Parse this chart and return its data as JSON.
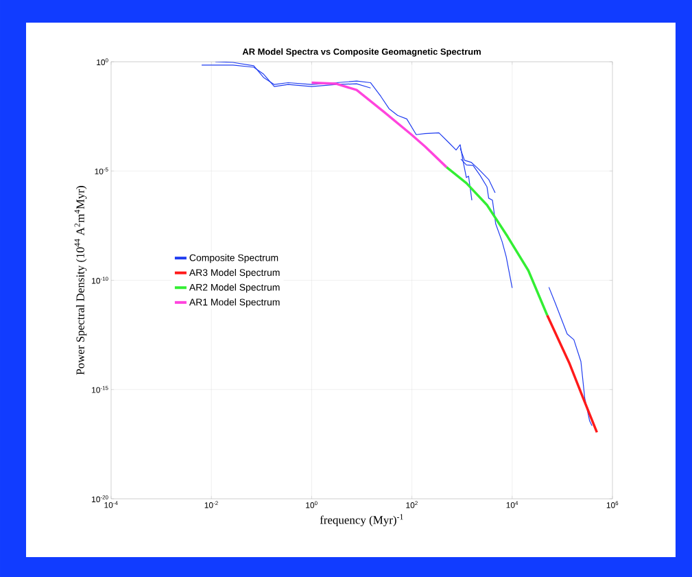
{
  "chart_data": {
    "type": "line",
    "title": "AR Model Spectra vs Composite Geomagnetic Spectrum",
    "xlabel": "frequency (Myr)$^{-1}$",
    "ylabel": "Power Spectral Density (10$^{44}$ A$^{2}$m$^{4}$Myr)",
    "log": "xy",
    "grid": true,
    "legend": "left",
    "line_style": "solid",
    "marker": "none",
    "xlim": [
      0.0001,
      1000000
    ],
    "ylim": [
      1e-20,
      1
    ],
    "xticks": [
      {
        "value": 0.0001,
        "label": "10$^{-4}$"
      },
      {
        "value": 0.01,
        "label": "10$^{-2}$"
      },
      {
        "value": 1,
        "label": "10$^{0}$"
      },
      {
        "value": 100,
        "label": "10$^{2}$"
      },
      {
        "value": 10000,
        "label": "10$^{4}$"
      },
      {
        "value": 1000000,
        "label": "10$^{6}$"
      }
    ],
    "yticks": [
      {
        "value": 1e-20,
        "label": "10$^{-20}$"
      },
      {
        "value": 1e-15,
        "label": "10$^{-15}$"
      },
      {
        "value": 1e-10,
        "label": "10$^{-10}$"
      },
      {
        "value": 1e-05,
        "label": "10$^{-5}$"
      },
      {
        "value": 1,
        "label": "10$^{0}$"
      }
    ],
    "series": [
      {
        "name": "Composite Spectrum",
        "color": "#1f3cf0",
        "x": [
          0.0064,
          0.027,
          0.07,
          0.11,
          0.18,
          0.34,
          1.0,
          3.1,
          7.9,
          15
        ],
        "values": [
          0.7,
          0.7,
          0.56,
          0.27,
          0.073,
          0.091,
          0.073,
          0.091,
          0.098,
          0.063
        ]
      },
      {
        "color": "#1f3cf0",
        "x": [
          0.012,
          0.027,
          0.07,
          0.11,
          0.18,
          0.34,
          1.0,
          3.1,
          7.9,
          15,
          24,
          35,
          52,
          79,
          122,
          184,
          346,
          555,
          760,
          918,
          1040,
          1220,
          1350,
          1570
        ],
        "values": [
          1,
          0.93,
          0.65,
          0.19,
          0.091,
          0.11,
          0.091,
          0.11,
          0.13,
          0.11,
          0.026,
          0.0071,
          0.0035,
          0.0024,
          0.00046,
          0.00052,
          0.00056,
          0.00019,
          9.1e-05,
          0.00016,
          3.1e-05,
          5e-06,
          5.8e-06,
          4.6e-07
        ]
      },
      {
        "color": "#1f3cf0",
        "x": [
          950,
          1220,
          1660,
          2290,
          3140,
          3400,
          4040,
          4680,
          6300,
          7600,
          10000
        ],
        "values": [
          3.5e-05,
          1.9e-05,
          1.8e-05,
          6.3e-06,
          1.9e-06,
          5.7e-07,
          4.6e-07,
          3.9e-08,
          5.9e-09,
          1.2e-09,
          4.5e-11
        ]
      },
      {
        "color": "#1f3cf0",
        "x": [
          918,
          1120,
          1520,
          2080,
          3400,
          4570
        ],
        "values": [
          0.00011,
          3.1e-05,
          2.5e-05,
          1.3e-05,
          4.1e-06,
          1e-06
        ]
      },
      {
        "color": "#1f3cf0",
        "x": [
          54000,
          73000,
          125000,
          170000,
          235000,
          280000,
          350000,
          390000
        ],
        "values": [
          4.8e-11,
          8.5e-12,
          3.5e-13,
          1.9e-13,
          1.9e-14,
          4.1e-16,
          3.7e-17,
          2.2e-17
        ]
      },
      {
        "name": "AR3 Model Spectrum",
        "color": "#ff1a1a",
        "x": [
          50000,
          140000,
          260000,
          490000
        ],
        "values": [
          2.5e-12,
          1.5e-14,
          4.1e-16,
          1.1e-17
        ]
      },
      {
        "name": "AR2 Model Spectrum",
        "color": "#33ee33",
        "x": [
          490,
          1220,
          3140,
          8100,
          21000,
          50000
        ],
        "values": [
          1.5e-05,
          2.8e-06,
          2.8e-07,
          1e-08,
          2.8e-10,
          2.5e-12
        ]
      },
      {
        "name": "AR1 Model Spectrum",
        "color": "#ff44dd",
        "x": [
          1.0,
          3.1,
          7.9,
          28,
          98,
          184,
          490
        ],
        "values": [
          0.11,
          0.098,
          0.051,
          0.005,
          0.00046,
          0.00013,
          1.5e-05
        ]
      }
    ]
  }
}
